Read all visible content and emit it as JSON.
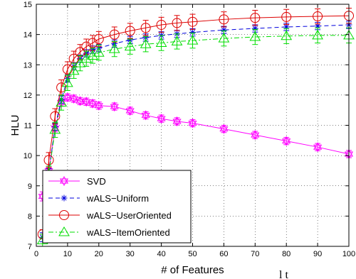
{
  "chart_data": {
    "type": "line",
    "title": "",
    "xlabel": "# of Features",
    "ylabel": "HLU",
    "xlim": [
      0,
      100
    ],
    "ylim": [
      7,
      15
    ],
    "grid": true,
    "legend_position": "bottom-left",
    "x_ticks": [
      "0",
      "10",
      "20",
      "30",
      "40",
      "50",
      "60",
      "70",
      "80",
      "90",
      "100"
    ],
    "y_ticks": [
      "7",
      "8",
      "9",
      "10",
      "11",
      "12",
      "13",
      "14",
      "15"
    ],
    "x": [
      2,
      4,
      6,
      8,
      10,
      12,
      14,
      16,
      18,
      20,
      25,
      30,
      35,
      40,
      45,
      50,
      60,
      70,
      80,
      90,
      100
    ],
    "series": [
      {
        "name": "SVD",
        "color": "#ff00ff",
        "line_style": "solid",
        "marker": "hexagram",
        "values": [
          8.65,
          9.5,
          10.9,
          11.75,
          11.92,
          11.88,
          11.8,
          11.78,
          11.72,
          11.65,
          11.62,
          11.48,
          11.33,
          11.22,
          11.13,
          11.07,
          10.88,
          10.68,
          10.48,
          10.28,
          10.05
        ],
        "error": [
          0.15,
          0.12,
          0.12,
          0.12,
          0.12,
          0.12,
          0.12,
          0.12,
          0.12,
          0.12,
          0.12,
          0.12,
          0.12,
          0.12,
          0.12,
          0.12,
          0.12,
          0.12,
          0.12,
          0.12,
          0.12
        ]
      },
      {
        "name": "wALS−Uniform",
        "color": "#0000dd",
        "line_style": "dashed",
        "marker": "asterisk",
        "values": [
          7.3,
          9.45,
          10.95,
          11.85,
          12.55,
          12.95,
          13.2,
          13.38,
          13.5,
          13.55,
          13.7,
          13.82,
          13.9,
          13.97,
          14.02,
          14.07,
          14.15,
          14.2,
          14.25,
          14.28,
          14.32
        ],
        "error": [
          0.15,
          0.12,
          0.12,
          0.12,
          0.12,
          0.12,
          0.12,
          0.12,
          0.12,
          0.12,
          0.12,
          0.12,
          0.12,
          0.12,
          0.12,
          0.12,
          0.12,
          0.12,
          0.12,
          0.12,
          0.12
        ]
      },
      {
        "name": "wALS−UserOriented",
        "color": "#dd0000",
        "line_style": "solid",
        "marker": "circle",
        "values": [
          7.4,
          9.85,
          11.3,
          12.25,
          12.85,
          13.2,
          13.42,
          13.6,
          13.72,
          13.85,
          14.0,
          14.12,
          14.22,
          14.32,
          14.38,
          14.42,
          14.5,
          14.55,
          14.58,
          14.6,
          14.62
        ],
        "error": [
          0.15,
          0.25,
          0.25,
          0.25,
          0.25,
          0.25,
          0.25,
          0.25,
          0.25,
          0.25,
          0.25,
          0.25,
          0.25,
          0.25,
          0.25,
          0.25,
          0.25,
          0.25,
          0.25,
          0.25,
          0.25
        ]
      },
      {
        "name": "wALS−ItemOriented",
        "color": "#00dd00",
        "line_style": "dashdot",
        "marker": "triangle",
        "values": [
          7.2,
          9.4,
          10.85,
          11.75,
          12.4,
          12.8,
          13.05,
          13.2,
          13.3,
          13.4,
          13.52,
          13.6,
          13.68,
          13.72,
          13.77,
          13.8,
          13.87,
          13.92,
          13.95,
          13.97,
          13.97
        ],
        "error": [
          0.2,
          0.25,
          0.25,
          0.25,
          0.25,
          0.25,
          0.25,
          0.25,
          0.25,
          0.25,
          0.25,
          0.25,
          0.25,
          0.25,
          0.25,
          0.25,
          0.25,
          0.25,
          0.25,
          0.25,
          0.25
        ]
      }
    ]
  },
  "page_fragment": "l t"
}
